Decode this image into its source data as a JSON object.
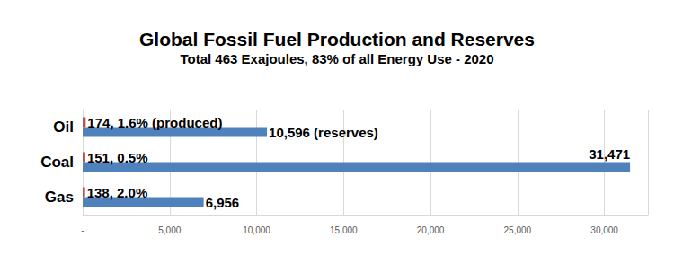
{
  "chart_data": {
    "type": "bar",
    "orientation": "horizontal",
    "title": "Global Fossil Fuel Production and Reserves",
    "subtitle": "Total 463 Exajoules, 83% of all Energy Use - 2020",
    "categories": [
      "Oil",
      "Coal",
      "Gas"
    ],
    "series": [
      {
        "color": "#c0504d",
        "values": [
          174,
          151,
          138
        ],
        "value_labels": [
          "174, 1.6% (produced)",
          "151, 0.5%",
          "138, 2.0%"
        ]
      },
      {
        "color": "#4f81bd",
        "values": [
          10596,
          31471,
          6956
        ],
        "value_labels": [
          "10,596 (reserves)",
          "31,471",
          "6,956"
        ]
      }
    ],
    "xlim": [
      0,
      32500
    ],
    "xticks": [
      {
        "value": 0,
        "label": "-"
      },
      {
        "value": 5000,
        "label": "5,000"
      },
      {
        "value": 10000,
        "label": "10,000"
      },
      {
        "value": 15000,
        "label": "15,000"
      },
      {
        "value": 20000,
        "label": "20,000"
      },
      {
        "value": 25000,
        "label": "25,000"
      },
      {
        "value": 30000,
        "label": "30,000"
      }
    ],
    "grid": true,
    "data_labels": true
  }
}
